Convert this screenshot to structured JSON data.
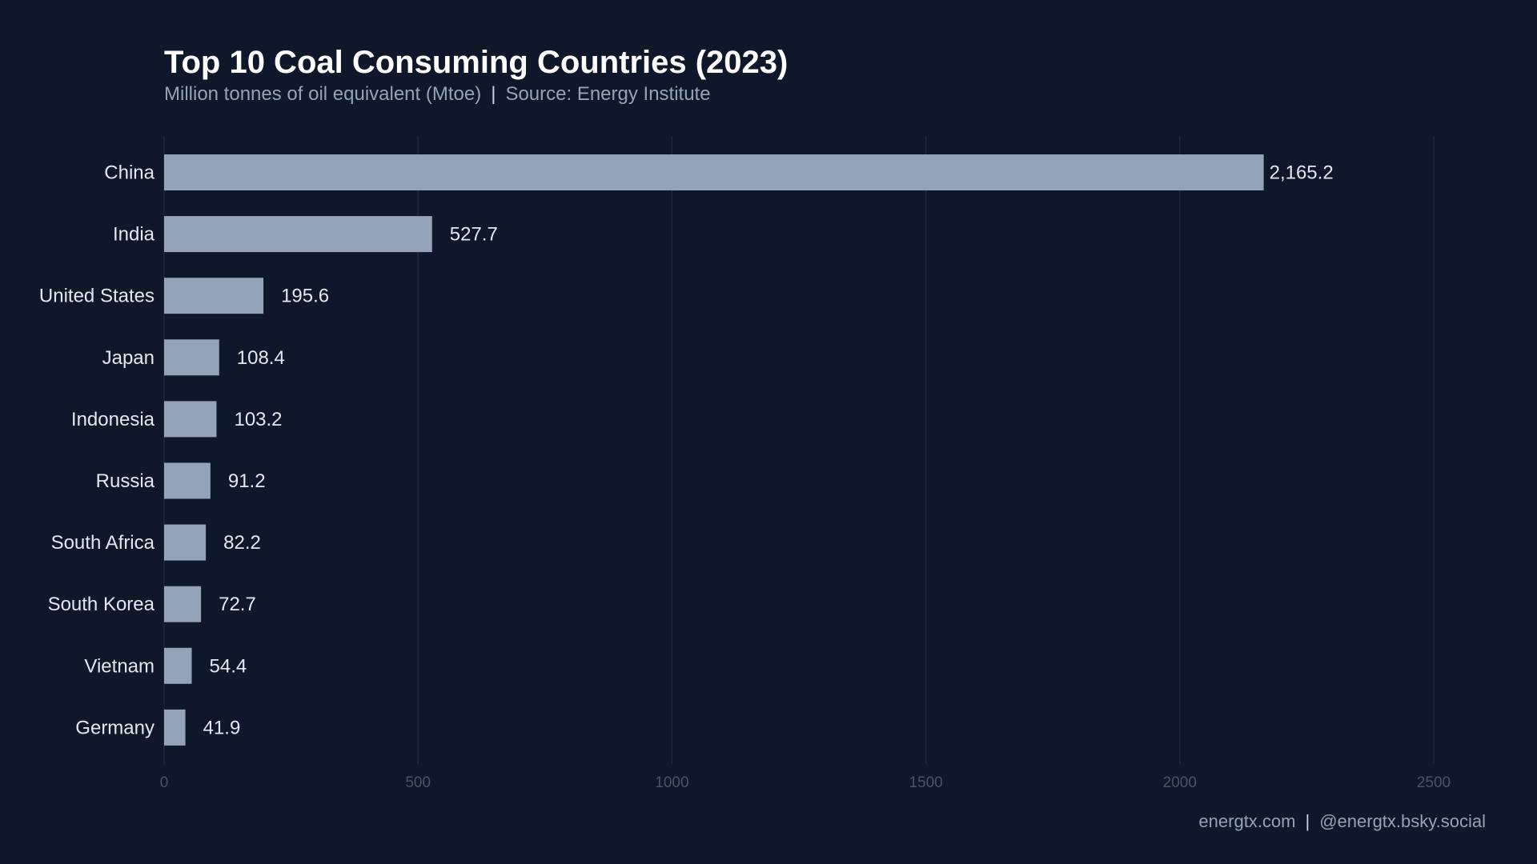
{
  "chart_data": {
    "type": "bar",
    "orientation": "horizontal",
    "title": "Top 10 Coal Consuming Countries (2023)",
    "subtitle_parts": [
      "Million tonnes of oil equivalent (Mtoe)",
      "Source: Energy Institute"
    ],
    "categories": [
      "China",
      "India",
      "United States",
      "Japan",
      "Indonesia",
      "Russia",
      "South Africa",
      "South Korea",
      "Vietnam",
      "Germany"
    ],
    "values": [
      2165.2,
      527.7,
      195.6,
      108.4,
      103.2,
      91.2,
      82.2,
      72.7,
      54.4,
      41.9
    ],
    "data_labels": [
      "2,165.2",
      "527.7",
      "195.6",
      "108.4",
      "103.2",
      "91.2",
      "82.2",
      "72.7",
      "54.4",
      "41.9"
    ],
    "xlim": [
      0,
      2500
    ],
    "xticks": [
      0,
      500,
      1000,
      1500,
      2000,
      2500
    ],
    "xtick_labels": [
      "0",
      "500",
      "1000",
      "1500",
      "2000",
      "2500"
    ],
    "xlabel": "",
    "ylabel": "",
    "grid": "vertical",
    "colors": {
      "background": "#0f172a",
      "bar": "#94a3b8",
      "grid": "#1e293b",
      "text": "#e2e8f0",
      "tick": "#475569"
    }
  },
  "footer": {
    "site": "energtx.com",
    "social": "@energtx.bsky.social"
  }
}
